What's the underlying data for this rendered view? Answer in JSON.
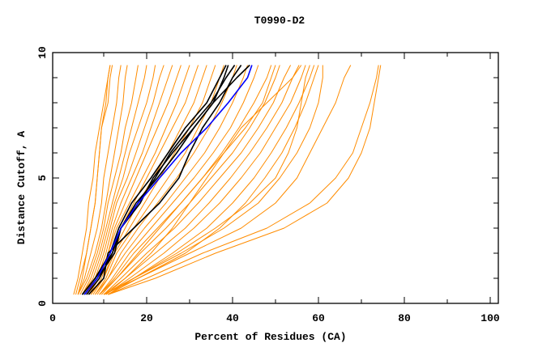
{
  "chart_data": {
    "type": "line",
    "title": "T0990-D2",
    "xlabel": "Percent of Residues (CA)",
    "ylabel": "Distance Cutoff, A",
    "xlim": [
      0,
      100
    ],
    "ylim": [
      0,
      10
    ],
    "xticks": [
      "0",
      "20",
      "40",
      "60",
      "80",
      "100"
    ],
    "yticks": [
      "0",
      "5",
      "10"
    ],
    "grid": false,
    "colors": {
      "others": "#ff8c00",
      "highlighted": "#000000",
      "best": "#0000ff"
    },
    "y_levels": [
      0.35,
      1,
      2,
      3,
      4,
      5,
      6,
      7,
      8,
      9,
      9.5
    ],
    "orange_series_x": [
      [
        3.5,
        4.5,
        6,
        7,
        8,
        8.5,
        9,
        9.5,
        10.5,
        11,
        11.5
      ],
      [
        3,
        4,
        5,
        6,
        6.5,
        7.5,
        8,
        9,
        10,
        11,
        11.5
      ],
      [
        4,
        5,
        6,
        7,
        8,
        8.5,
        9,
        9.5,
        11,
        11.5,
        12
      ],
      [
        4,
        5.5,
        7,
        8.5,
        9.5,
        10,
        11,
        12,
        13,
        13.5,
        14
      ],
      [
        4,
        6,
        8,
        9.5,
        10.5,
        11.5,
        12.5,
        13.5,
        14.5,
        15,
        15.5
      ],
      [
        4.5,
        6.5,
        8.5,
        10,
        11,
        12.5,
        14,
        15,
        16.5,
        17.5,
        18
      ],
      [
        5,
        7,
        9,
        10.5,
        12,
        13.5,
        15,
        16.5,
        18,
        19.5,
        20
      ],
      [
        5,
        7.5,
        9.5,
        11,
        12.5,
        14.5,
        16,
        18,
        20,
        21.5,
        22
      ],
      [
        5.5,
        8,
        10,
        11.5,
        13,
        15.5,
        17.5,
        19.5,
        21.5,
        23,
        24
      ],
      [
        6,
        8.5,
        10.5,
        12,
        14,
        16.5,
        19,
        21,
        23,
        25,
        26
      ],
      [
        6,
        9,
        11,
        12.5,
        15,
        17.5,
        20,
        22.5,
        25,
        27,
        28
      ],
      [
        6.5,
        9,
        11,
        13,
        16,
        19,
        22,
        24.5,
        27,
        29,
        30
      ],
      [
        7,
        9.5,
        11.5,
        14,
        17,
        20,
        23,
        26,
        29,
        31,
        32
      ],
      [
        7,
        10,
        12,
        15,
        18,
        21.5,
        25,
        28,
        31,
        33,
        34
      ],
      [
        7.5,
        10,
        12.5,
        16,
        19.5,
        23,
        26.5,
        30,
        33,
        35,
        36
      ],
      [
        8,
        10.5,
        13,
        17,
        21,
        25,
        29,
        32,
        35,
        37,
        38
      ],
      [
        8,
        11,
        14,
        18,
        22.5,
        27,
        31,
        34.5,
        37.5,
        40,
        41
      ],
      [
        8.5,
        11,
        15,
        19.5,
        24.5,
        29,
        33.5,
        37,
        40,
        42.5,
        43.5
      ],
      [
        9,
        12,
        16,
        21,
        26,
        31,
        35.5,
        39.5,
        42.5,
        45,
        46
      ],
      [
        9,
        12.5,
        17,
        22.5,
        28,
        33,
        37.5,
        41.5,
        45,
        48,
        49
      ],
      [
        9.5,
        13,
        18.5,
        24.5,
        30,
        35,
        40,
        44,
        47.5,
        50,
        51
      ],
      [
        10,
        14,
        20,
        26.5,
        32,
        37,
        42,
        46,
        49.5,
        52,
        53.5
      ],
      [
        10,
        15,
        22,
        29,
        34.5,
        39.5,
        44,
        48,
        51.5,
        54,
        55.5
      ],
      [
        10.5,
        16,
        24,
        31,
        37,
        42,
        46.5,
        50,
        53.5,
        56,
        57
      ],
      [
        11,
        17,
        26,
        34,
        40,
        45,
        49,
        52.5,
        55.5,
        58,
        59
      ],
      [
        11,
        18,
        29,
        37,
        43,
        47.5,
        51.5,
        54.5,
        57,
        59,
        60
      ],
      [
        10,
        17,
        27,
        36,
        44,
        50,
        53,
        55,
        56,
        57,
        58
      ],
      [
        10.5,
        15,
        21,
        26,
        30,
        34,
        38,
        42,
        48,
        54,
        56
      ],
      [
        9,
        13,
        18,
        23,
        28,
        33,
        38,
        43,
        47,
        49,
        50
      ],
      [
        10,
        17,
        28,
        38,
        46,
        51,
        55,
        58,
        60,
        61,
        61
      ],
      [
        10,
        18,
        30,
        42,
        50,
        55,
        58,
        61,
        64,
        66,
        67.5
      ],
      [
        11,
        20,
        33,
        48,
        58,
        64,
        68,
        70,
        72,
        73.5,
        74
      ],
      [
        11,
        22,
        36,
        52,
        62,
        67,
        70,
        72,
        73,
        74,
        74.5
      ]
    ],
    "black_series_x": [
      [
        5,
        8,
        11.5,
        13.5,
        16.5,
        21,
        25,
        29,
        34,
        37,
        38.5
      ],
      [
        6,
        9,
        12,
        14,
        17.5,
        22.5,
        27,
        31,
        35.5,
        38,
        39
      ],
      [
        6.5,
        10,
        11,
        17,
        23,
        27.5,
        30,
        33,
        37,
        40,
        42
      ],
      [
        5.5,
        8.5,
        12.5,
        14,
        18,
        22,
        25.5,
        30,
        35,
        38.5,
        40.5
      ],
      [
        5,
        8,
        12,
        14,
        18.5,
        21.5,
        26,
        31,
        35.5,
        41,
        44
      ]
    ],
    "blue_series_x": [
      5.5,
      8.5,
      11.5,
      14,
      18,
      23,
      28,
      34,
      39,
      43.5,
      44.5
    ]
  }
}
